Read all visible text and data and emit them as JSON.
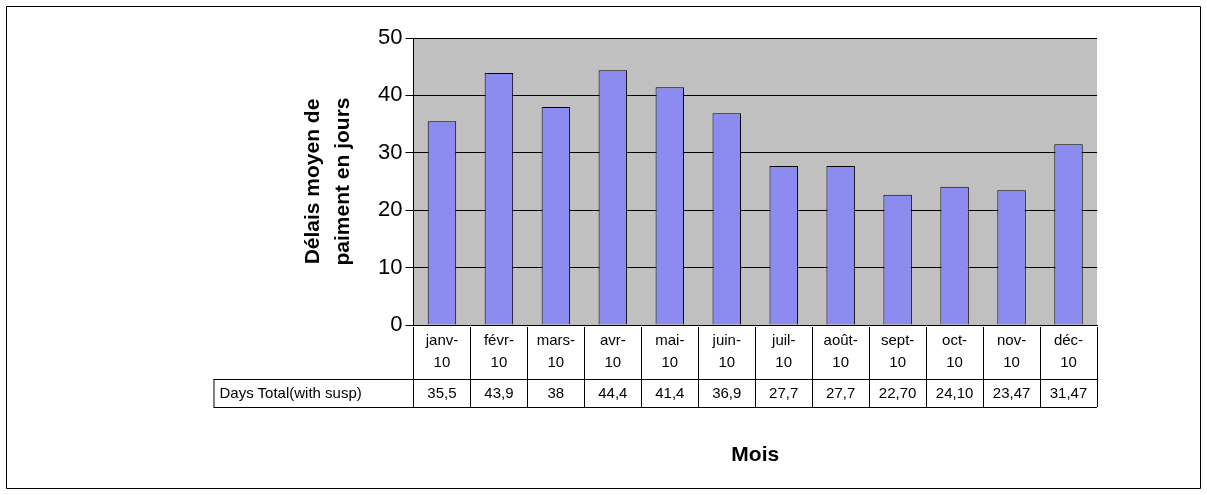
{
  "chart_data": {
    "type": "bar",
    "ylabel": "Délais moyen de paiment en jours",
    "xlabel": "Mois",
    "categories": [
      "janv-10",
      "févr-10",
      "mars-10",
      "avr-10",
      "mai-10",
      "juin-10",
      "juil-10",
      "août-10",
      "sept-10",
      "oct-10",
      "nov-10",
      "déc-10"
    ],
    "series": [
      {
        "name": "Days Total(with susp)",
        "color": "#8c8cf0",
        "values": [
          35.5,
          43.9,
          38,
          44.4,
          41.4,
          36.9,
          27.7,
          27.7,
          22.7,
          24.1,
          23.47,
          31.47
        ],
        "value_labels": [
          "35,5",
          "43,9",
          "38",
          "44,4",
          "41,4",
          "36,9",
          "27,7",
          "27,7",
          "22,70",
          "24,10",
          "23,47",
          "31,47"
        ]
      }
    ],
    "ylim": [
      0,
      50
    ],
    "yticks": [
      0,
      10,
      20,
      30,
      40,
      50
    ],
    "grid": "y",
    "legend": false
  }
}
